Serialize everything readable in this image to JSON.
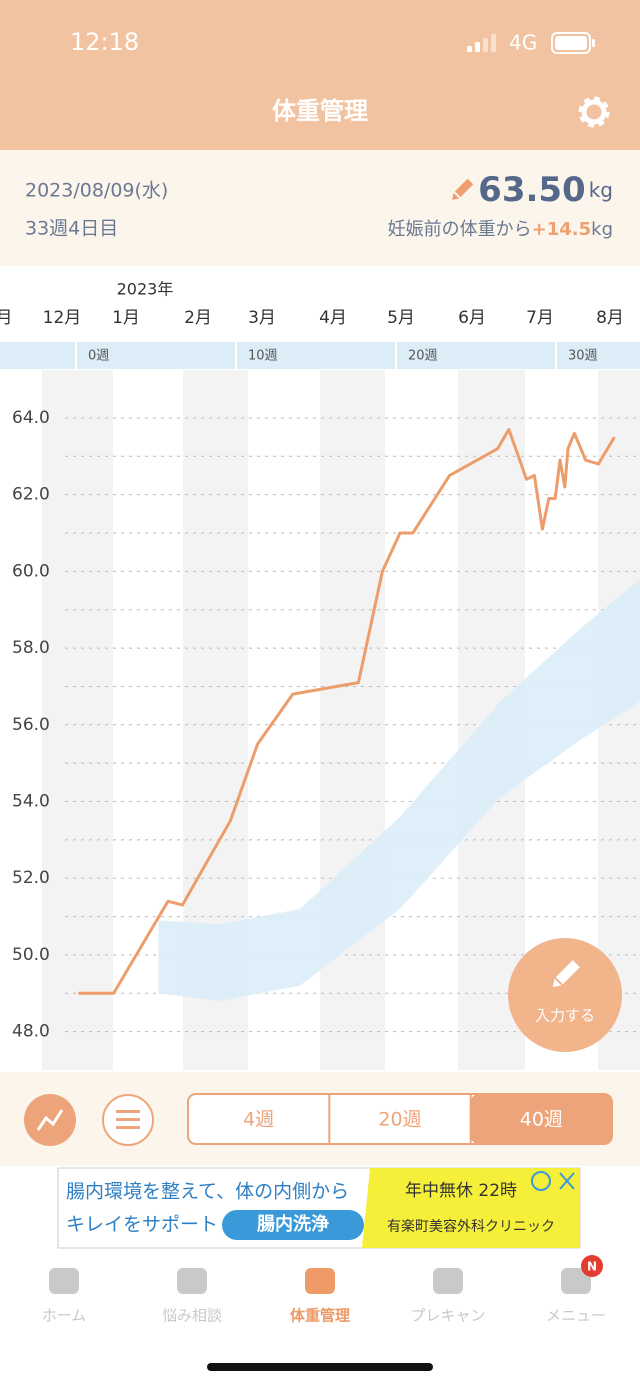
{
  "status_bar": {
    "time": "12:18",
    "network": "4G"
  },
  "header": {
    "title": "体重管理"
  },
  "summary": {
    "date": "2023/08/09(水)",
    "week": "33週4日目",
    "weight": "63.50",
    "weight_unit": "kg",
    "gain_label": "妊娠前の体重から",
    "gain": "+14.5",
    "gain_unit": "kg"
  },
  "chart_data": {
    "type": "line",
    "year_label": "2023年",
    "months": [
      "月",
      "12月",
      "1月",
      "2月",
      "3月",
      "4月",
      "5月",
      "6月",
      "7月",
      "8月"
    ],
    "x": [
      -0.1,
      2.1,
      5.5,
      6.4,
      9.4,
      11.1,
      13.3,
      17.4,
      18.9,
      20.0,
      20.8,
      23.1,
      26.1,
      26.8,
      27.4,
      27.9,
      28.4,
      28.9,
      29.3,
      29.7,
      30.0,
      30.3,
      30.5,
      30.9,
      31.6,
      32.4,
      33.4
    ],
    "values": [
      49.0,
      49.0,
      51.4,
      51.3,
      53.5,
      55.5,
      56.8,
      57.1,
      60.0,
      61.0,
      61.0,
      62.5,
      63.2,
      63.7,
      63.0,
      62.4,
      62.5,
      61.1,
      61.9,
      61.9,
      62.9,
      62.2,
      63.2,
      63.6,
      62.9,
      62.8,
      63.5
    ],
    "color": "#ec9d6b",
    "band": {
      "x": [
        4.9,
        8.75,
        13.75,
        20.0,
        26.25,
        31.25,
        35.0
      ],
      "upper": [
        50.9,
        50.8,
        51.2,
        53.6,
        56.6,
        58.5,
        59.8
      ],
      "lower": [
        49.0,
        48.8,
        49.2,
        51.2,
        54.1,
        55.6,
        56.6
      ],
      "color": "#dcedf8"
    },
    "xlim": [
      -5,
      35
    ],
    "xticks": [
      {
        "value": 0,
        "label": "0週"
      },
      {
        "value": 10,
        "label": "10週"
      },
      {
        "value": 20,
        "label": "20週"
      },
      {
        "value": 30,
        "label": "30週"
      }
    ],
    "ylim": [
      47,
      65.25
    ],
    "yticks": [
      {
        "value": 48,
        "label": "48.0"
      },
      {
        "value": 50,
        "label": "50.0"
      },
      {
        "value": 52,
        "label": "52.0"
      },
      {
        "value": 54,
        "label": "54.0"
      },
      {
        "value": 56,
        "label": "56.0"
      },
      {
        "value": 58,
        "label": "58.0"
      },
      {
        "value": 60,
        "label": "60.0"
      },
      {
        "value": 62,
        "label": "62.0"
      },
      {
        "value": 64,
        "label": "64.0"
      }
    ],
    "grid": true
  },
  "controls": {
    "ranges": [
      "4週",
      "20週",
      "40週"
    ],
    "selected": 2
  },
  "fab": {
    "label": "入力する"
  },
  "ad": {
    "line1": "腸内環境を整えて、体の内側から",
    "line2": "キレイをサポート",
    "pill": "腸内洗浄",
    "hours": "年中無休 22時",
    "clinic": "有楽町美容外科クリニック"
  },
  "tabs": {
    "items": [
      "ホーム",
      "悩み相談",
      "体重管理",
      "プレキャン",
      "メニュー"
    ],
    "active": 2,
    "badge": "N"
  }
}
